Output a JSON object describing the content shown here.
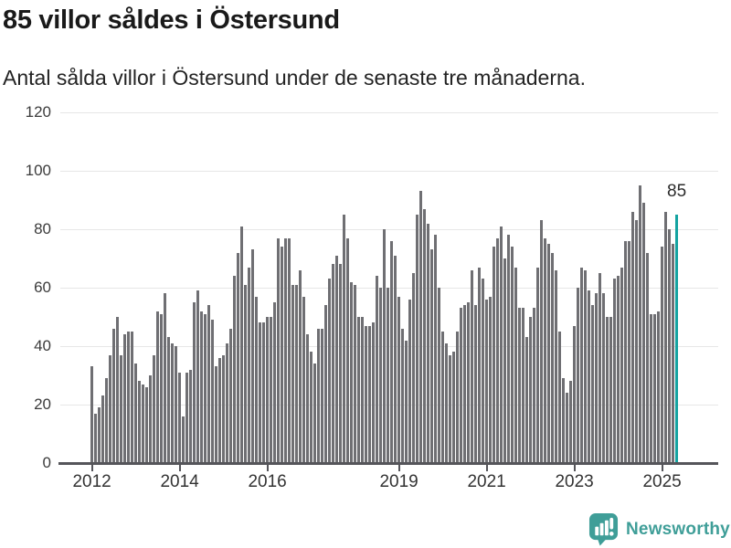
{
  "header": {
    "title": "85 villor såldes i Östersund",
    "subtitle": "Antal sålda villor i Östersund under de senaste tre månaderna."
  },
  "chart_data": {
    "type": "bar",
    "title": "85 villor såldes i Östersund",
    "subtitle": "Antal sålda villor i Östersund under de senaste tre månaderna.",
    "ylabel": "",
    "xlabel": "",
    "ylim": [
      0,
      120
    ],
    "y_ticks": [
      0,
      20,
      40,
      60,
      80,
      100,
      120
    ],
    "x_tick_labels": [
      "2012",
      "2014",
      "2016",
      "2019",
      "2021",
      "2023",
      "2025"
    ],
    "frequency": "monthly",
    "grid": "horizontal",
    "bar_color": "#6f6f73",
    "axis_color": "#55555a",
    "label_color": "#3c3c3c",
    "series": [
      {
        "name": "Antal sålda villor",
        "years": [
          {
            "year": 2012,
            "monthly": [
              33,
              17,
              19,
              23,
              29,
              37,
              46,
              50,
              37,
              44,
              45,
              45
            ]
          },
          {
            "year": 2013,
            "monthly": [
              34,
              28,
              27,
              26,
              30,
              37,
              52,
              51,
              58,
              43,
              41,
              40
            ]
          },
          {
            "year": 2014,
            "monthly": [
              31,
              16,
              31,
              32,
              55,
              59,
              52,
              51,
              54,
              49,
              33,
              36
            ]
          },
          {
            "year": 2015,
            "monthly": [
              37,
              41,
              46,
              64,
              72,
              81,
              61,
              67,
              73,
              57,
              48,
              48
            ]
          },
          {
            "year": 2016,
            "monthly": [
              50,
              50,
              55,
              77,
              74,
              77,
              77,
              61,
              61,
              66,
              57,
              44
            ]
          },
          {
            "year": 2017,
            "monthly": [
              38,
              34,
              46,
              46,
              54,
              63,
              68,
              71,
              68,
              85,
              77,
              62
            ]
          },
          {
            "year": 2018,
            "monthly": [
              61,
              50,
              50,
              47,
              47,
              48,
              64,
              60,
              80,
              60,
              76,
              71
            ]
          },
          {
            "year": 2019,
            "monthly": [
              57,
              46,
              42,
              56,
              65,
              85,
              93,
              87,
              82,
              73,
              78,
              60
            ]
          },
          {
            "year": 2020,
            "monthly": [
              45,
              41,
              37,
              38,
              45,
              53,
              54,
              55,
              66,
              54,
              67,
              63
            ]
          },
          {
            "year": 2021,
            "monthly": [
              56,
              57,
              74,
              77,
              81,
              70,
              78,
              74,
              67,
              53,
              53,
              43
            ]
          },
          {
            "year": 2022,
            "monthly": [
              50,
              53,
              67,
              83,
              77,
              75,
              72,
              66,
              45,
              29,
              24,
              28
            ]
          },
          {
            "year": 2023,
            "monthly": [
              47,
              60,
              67,
              66,
              59,
              54,
              58,
              65,
              58,
              50,
              50,
              63
            ]
          },
          {
            "year": 2024,
            "monthly": [
              64,
              67,
              76,
              76,
              86,
              83,
              95,
              89,
              72,
              51,
              51,
              52
            ]
          },
          {
            "year": 2025,
            "monthly": [
              74,
              86,
              80,
              75,
              85
            ]
          }
        ]
      }
    ],
    "highlight": {
      "position": "last",
      "value": 85,
      "color": "#14a3a1",
      "annotation": "85"
    }
  },
  "footer": {
    "brand": "Newsworthy",
    "brand_color": "#3f9e98",
    "icon": "newsworthy-bar-chart-speech-bubble-icon"
  }
}
